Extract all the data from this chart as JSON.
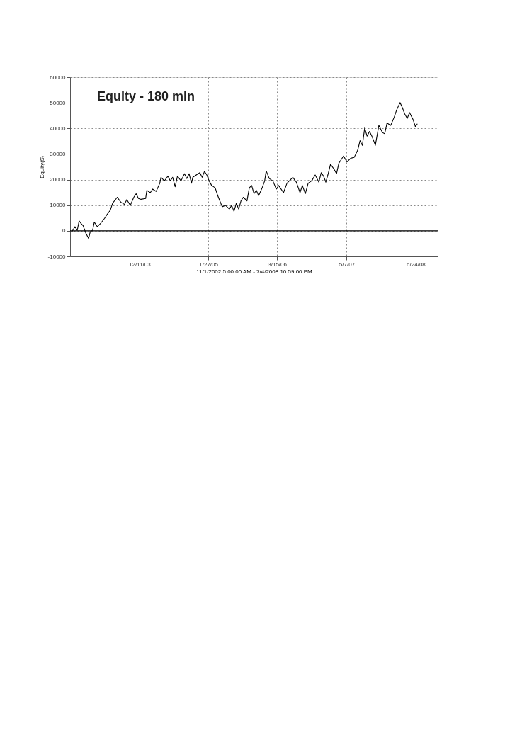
{
  "chart_data": {
    "type": "line",
    "title": "Equity - 180 min",
    "xlabel": "11/1/2002 5:00:00 AM - 7/4/2008 10:59:00 PM",
    "ylabel": "Equity($)",
    "xlim": [
      "2002-10-21",
      "2008-11-03"
    ],
    "xticks": [
      {
        "value": "2003-12-11",
        "label": "12/11/03"
      },
      {
        "value": "2005-01-27",
        "label": "1/27/05"
      },
      {
        "value": "2006-03-15",
        "label": "3/15/06"
      },
      {
        "value": "2007-05-07",
        "label": "5/7/07"
      },
      {
        "value": "2008-06-24",
        "label": "6/24/08"
      }
    ],
    "ylim": [
      -10000,
      60000
    ],
    "yticks": [
      -10000,
      0,
      10000,
      20000,
      30000,
      40000,
      50000,
      60000
    ],
    "grid": true,
    "line_style": "solid",
    "marker": "none",
    "ref_lines": [
      {
        "axis": "y",
        "value": 0,
        "color": "#000000",
        "line_style": "solid"
      }
    ],
    "series": [
      {
        "color": "#000000",
        "x": [
          "2002-11-01",
          "2002-11-19",
          "2002-12-03",
          "2002-12-14",
          "2002-12-24",
          "2003-01-07",
          "2003-01-22",
          "2003-02-09",
          "2003-02-19",
          "2003-03-05",
          "2003-03-15",
          "2003-04-02",
          "2003-04-23",
          "2003-05-15",
          "2003-05-29",
          "2003-06-19",
          "2003-07-03",
          "2003-07-31",
          "2003-08-21",
          "2003-09-12",
          "2003-09-26",
          "2003-10-17",
          "2003-11-07",
          "2003-11-21",
          "2003-12-05",
          "2003-12-20",
          "2004-01-17",
          "2004-01-24",
          "2004-02-14",
          "2004-02-28",
          "2004-03-20",
          "2004-04-11",
          "2004-04-18",
          "2004-05-09",
          "2004-05-30",
          "2004-06-13",
          "2004-06-27",
          "2004-07-12",
          "2004-07-26",
          "2004-08-16",
          "2004-09-06",
          "2004-09-20",
          "2004-10-04",
          "2004-10-18",
          "2004-10-26",
          "2004-11-16",
          "2004-12-07",
          "2004-12-21",
          "2005-01-04",
          "2005-01-18",
          "2005-02-01",
          "2005-02-16",
          "2005-03-09",
          "2005-03-23",
          "2005-04-06",
          "2005-04-20",
          "2005-05-11",
          "2005-06-02",
          "2005-06-16",
          "2005-06-30",
          "2005-07-14",
          "2005-07-28",
          "2005-08-11",
          "2005-08-25",
          "2005-09-16",
          "2005-09-30",
          "2005-10-14",
          "2005-10-28",
          "2005-11-11",
          "2005-11-25",
          "2005-12-16",
          "2005-12-31",
          "2006-01-09",
          "2006-01-28",
          "2006-02-18",
          "2006-03-11",
          "2006-03-25",
          "2006-04-23",
          "2006-05-14",
          "2006-06-18",
          "2006-07-09",
          "2006-07-31",
          "2006-08-14",
          "2006-09-01",
          "2006-09-18",
          "2006-10-09",
          "2006-10-30",
          "2006-11-21",
          "2006-12-05",
          "2006-12-19",
          "2007-01-02",
          "2007-01-16",
          "2007-01-30",
          "2007-02-20",
          "2007-03-07",
          "2007-03-21",
          "2007-04-18",
          "2007-05-09",
          "2007-05-30",
          "2007-06-21",
          "2007-07-12",
          "2007-07-26",
          "2007-08-09",
          "2007-08-23",
          "2007-09-06",
          "2007-09-21",
          "2007-10-05",
          "2007-10-26",
          "2007-11-16",
          "2007-12-07",
          "2007-12-21",
          "2008-01-04",
          "2008-01-26",
          "2008-02-16",
          "2008-03-01",
          "2008-03-22",
          "2008-04-05",
          "2008-04-19",
          "2008-05-04",
          "2008-05-18",
          "2008-06-08",
          "2008-06-22",
          "2008-07-04"
        ],
        "values": [
          -300,
          1600,
          200,
          3900,
          3000,
          2000,
          -700,
          -3000,
          -300,
          200,
          3400,
          1600,
          3000,
          4800,
          6200,
          8000,
          10800,
          13100,
          11200,
          10300,
          12200,
          9900,
          13100,
          14500,
          12600,
          12300,
          12600,
          15800,
          14900,
          16300,
          15400,
          18600,
          20900,
          19500,
          21400,
          19500,
          20900,
          17200,
          21400,
          19500,
          22300,
          20400,
          22300,
          18600,
          20900,
          21800,
          22700,
          20900,
          23200,
          21800,
          19500,
          17700,
          16800,
          14000,
          11700,
          9400,
          9900,
          8500,
          9900,
          7600,
          10800,
          8500,
          11700,
          13100,
          11700,
          16800,
          17700,
          14500,
          15800,
          13700,
          16800,
          19500,
          23400,
          20400,
          19500,
          16300,
          17700,
          14900,
          18600,
          20900,
          19000,
          14900,
          17700,
          14500,
          18600,
          19500,
          21800,
          19000,
          22700,
          21400,
          19000,
          22300,
          26000,
          24100,
          22300,
          26400,
          29200,
          26900,
          28300,
          28700,
          31500,
          35200,
          33400,
          40200,
          37000,
          38800,
          37000,
          33400,
          41200,
          38400,
          37900,
          42100,
          41200,
          44400,
          47100,
          50100,
          48100,
          45700,
          43900,
          46200,
          43500,
          40700,
          41800
        ]
      }
    ]
  }
}
